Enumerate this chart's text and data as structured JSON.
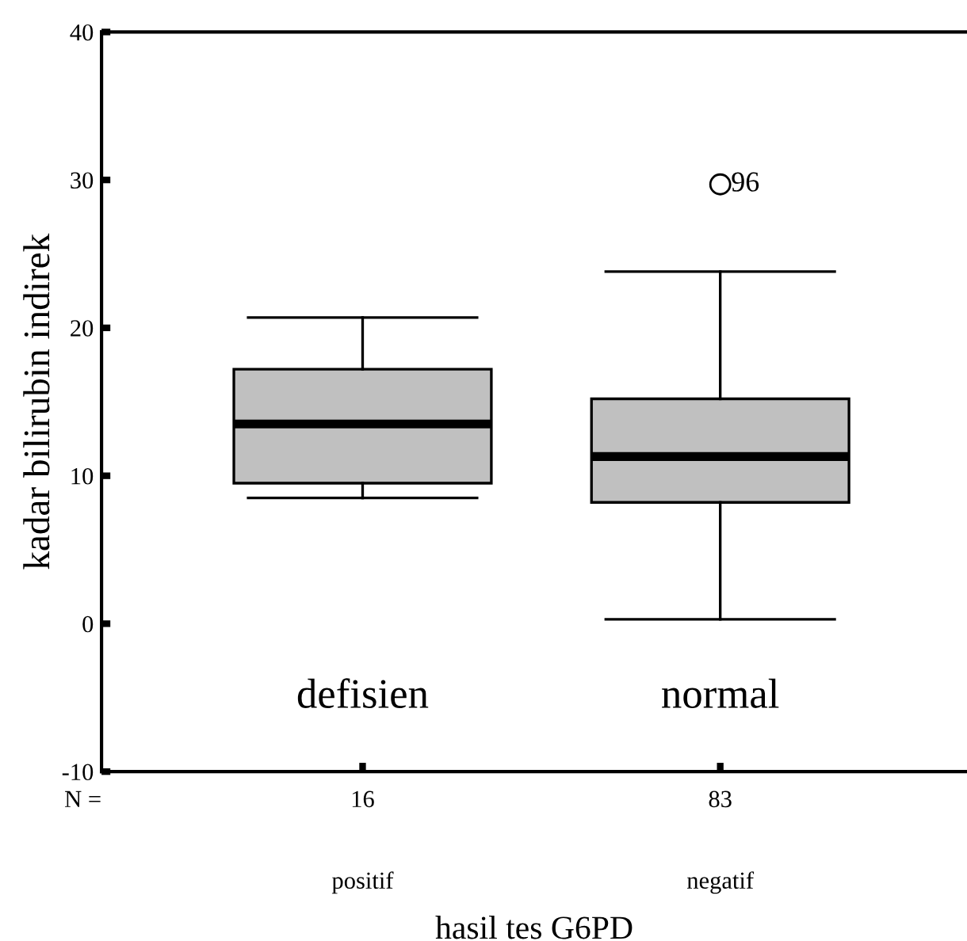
{
  "chart_data": {
    "type": "box",
    "xlabel": "hasil tes G6PD",
    "ylabel": "kadar bilirubin indirek",
    "categories": [
      "positif",
      "negatif"
    ],
    "boxes": [
      {
        "low": 8.5,
        "q1": 9.5,
        "median": 13.5,
        "q3": 17.2,
        "high": 20.7
      },
      {
        "low": 0.3,
        "q1": 8.2,
        "median": 11.3,
        "q3": 15.2,
        "high": 23.8,
        "outliers": [
          29.7
        ]
      }
    ],
    "color": "#c0c0c0",
    "ylim": [
      -10,
      40
    ],
    "yticks": [
      -10,
      0,
      10,
      20,
      30,
      40
    ],
    "grid": false,
    "annotations": [
      "96",
      "defisien",
      "normal",
      "N =",
      "16",
      "83"
    ]
  }
}
